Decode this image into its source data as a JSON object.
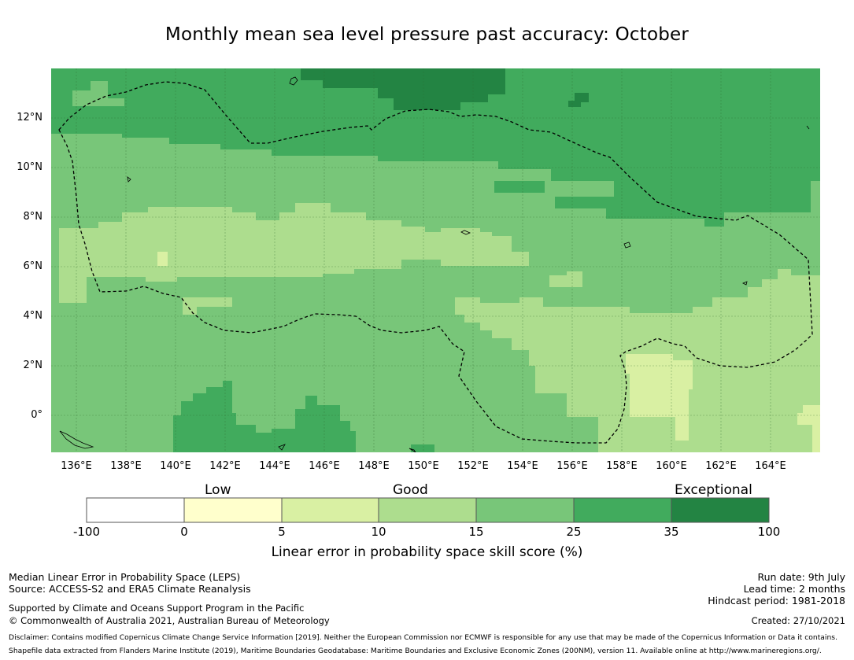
{
  "title": "Monthly mean sea level pressure past accuracy: October",
  "map": {
    "lat_labels": [
      "12°N",
      "10°N",
      "8°N",
      "6°N",
      "4°N",
      "2°N",
      "0°"
    ],
    "lon_labels": [
      "136°E",
      "138°E",
      "140°E",
      "142°E",
      "144°E",
      "146°E",
      "148°E",
      "150°E",
      "152°E",
      "154°E",
      "156°E",
      "158°E",
      "160°E",
      "162°E",
      "164°E"
    ],
    "lon_range": [
      135,
      166
    ],
    "lat_range": [
      -1.5,
      14
    ],
    "boundary_line": "dashed-black"
  },
  "colorbar": {
    "categories": [
      "Low",
      "Good",
      "Exceptional"
    ],
    "ticks": [
      "-100",
      "0",
      "5",
      "10",
      "15",
      "25",
      "35",
      "100"
    ],
    "colors": [
      "#ffffff",
      "#ffffcc",
      "#d9f0a3",
      "#addd8e",
      "#78c679",
      "#41ab5d",
      "#238443"
    ],
    "title": "Linear error in probability space skill score (%)"
  },
  "footer": {
    "line1": "Median Linear Error in Probability Space (LEPS)",
    "line2": "Source: ACCESS-S2 and ERA5 Climate Reanalysis",
    "line3": "Supported by Climate and Oceans Support Program in the Pacific",
    "line4": "© Commonwealth of Australia 2021, Australian Bureau of Meteorology",
    "run_date": "Run date: 9th July",
    "lead_time": "Lead time: 2 months",
    "hindcast": "Hindcast period: 1981-2018",
    "created": "Created: 27/10/2021",
    "disclaimer1": "Disclaimer: Contains modified Copernicus Climate Change Service Information [2019]. Neither the European Commission nor ECMWF is responsible for any use that may be made of the Copernicus Information or Data it contains.",
    "disclaimer2": "Shapefile data extracted from Flanders Marine Institute (2019), Maritime Boundaries Geodatabase: Maritime Boundaries and Exclusive Economic Zones (200NM), version 11. Available online at http://www.marineregions.org/."
  }
}
